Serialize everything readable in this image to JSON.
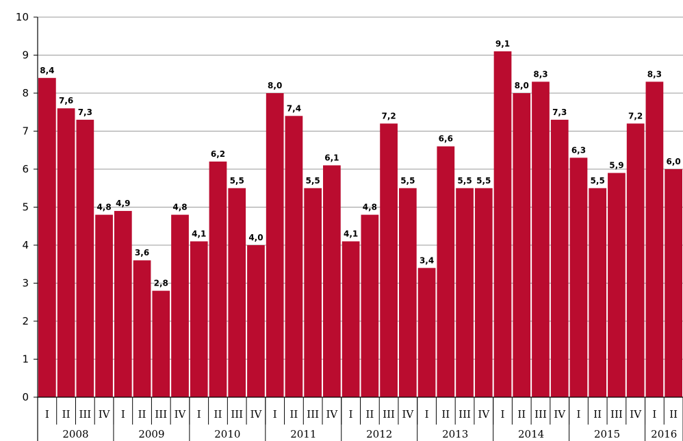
{
  "chart_data": {
    "type": "bar",
    "title": "",
    "xlabel": "",
    "ylabel": "",
    "ylim": [
      0,
      10
    ],
    "yticks": [
      "0",
      "1",
      "2",
      "3",
      "4",
      "5",
      "6",
      "7",
      "8",
      "9",
      "10"
    ],
    "grid": true,
    "bar_color": "#BA0C2F",
    "years": [
      {
        "label": "2008",
        "quarters": [
          "I",
          "II",
          "III",
          "IV"
        ],
        "values": [
          8.4,
          7.6,
          7.3,
          4.8
        ],
        "value_labels": [
          "8,4",
          "7,6",
          "7,3",
          "4,8"
        ]
      },
      {
        "label": "2009",
        "quarters": [
          "I",
          "II",
          "III",
          "IV"
        ],
        "values": [
          4.9,
          3.6,
          2.8,
          4.8
        ],
        "value_labels": [
          "4,9",
          "3,6",
          "2,8",
          "4,8"
        ]
      },
      {
        "label": "2010",
        "quarters": [
          "I",
          "II",
          "III",
          "IV"
        ],
        "values": [
          4.1,
          6.2,
          5.5,
          4.0
        ],
        "value_labels": [
          "4,1",
          "6,2",
          "5,5",
          "4,0"
        ]
      },
      {
        "label": "2011",
        "quarters": [
          "I",
          "II",
          "III",
          "IV"
        ],
        "values": [
          8.0,
          7.4,
          5.5,
          6.1
        ],
        "value_labels": [
          "8,0",
          "7,4",
          "5,5",
          "6,1"
        ]
      },
      {
        "label": "2012",
        "quarters": [
          "I",
          "II",
          "III",
          "IV"
        ],
        "values": [
          4.1,
          4.8,
          7.2,
          5.5
        ],
        "value_labels": [
          "4,1",
          "4,8",
          "7,2",
          "5,5"
        ]
      },
      {
        "label": "2013",
        "quarters": [
          "I",
          "II",
          "III",
          "IV"
        ],
        "values": [
          3.4,
          6.6,
          5.5,
          5.5
        ],
        "value_labels": [
          "3,4",
          "6,6",
          "5,5",
          "5,5"
        ]
      },
      {
        "label": "2014",
        "quarters": [
          "I",
          "II",
          "III",
          "IV"
        ],
        "values": [
          9.1,
          8.0,
          8.3,
          7.3
        ],
        "value_labels": [
          "9,1",
          "8,0",
          "8,3",
          "7,3"
        ]
      },
      {
        "label": "2015",
        "quarters": [
          "I",
          "II",
          "III",
          "IV"
        ],
        "values": [
          6.3,
          5.5,
          5.9,
          7.2
        ],
        "value_labels": [
          "6,3",
          "5,5",
          "5,9",
          "7,2"
        ]
      },
      {
        "label": "2016",
        "quarters": [
          "I",
          "II"
        ],
        "values": [
          8.3,
          6.0
        ],
        "value_labels": [
          "8,3",
          "6,0"
        ]
      }
    ]
  }
}
